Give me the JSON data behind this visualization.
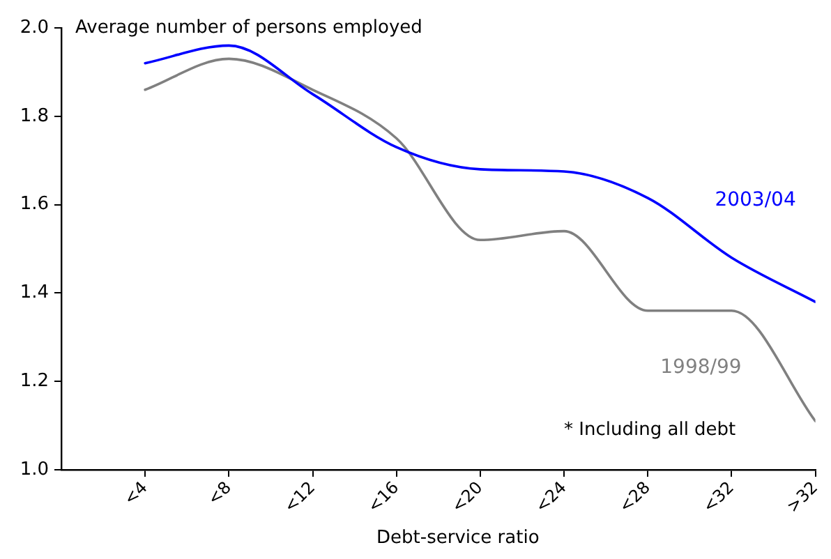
{
  "chart_data": {
    "type": "line",
    "ylabel": "Average number of persons employed",
    "xlabel": "Debt-service ratio",
    "annotations": [
      "* Including all debt"
    ],
    "categories": [
      "<4",
      "<8",
      "<12",
      "<16",
      "<20",
      "<24",
      "<28",
      "<32",
      ">32"
    ],
    "ylim": [
      1.0,
      2.0
    ],
    "yticks": [
      {
        "value": 1,
        "label": "1.0"
      },
      {
        "value": 1.2,
        "label": "1.2"
      },
      {
        "value": 1.4,
        "label": "1.4"
      },
      {
        "value": 1.6,
        "label": "1.6"
      },
      {
        "value": 1.8,
        "label": "1.8"
      },
      {
        "value": 2,
        "label": "2.0"
      }
    ],
    "grid": false,
    "legend": false,
    "marker": "none",
    "line_style": "solid",
    "series": [
      {
        "name": "2003/04",
        "color": "#0000ff",
        "values": [
          1.92,
          1.96,
          1.85,
          1.73,
          1.68,
          1.675,
          1.615,
          1.48,
          1.38
        ]
      },
      {
        "name": "1998/99",
        "color": "#808080",
        "values": [
          1.86,
          1.93,
          1.86,
          1.75,
          1.52,
          1.54,
          1.36,
          1.36,
          1.11
        ]
      }
    ]
  }
}
